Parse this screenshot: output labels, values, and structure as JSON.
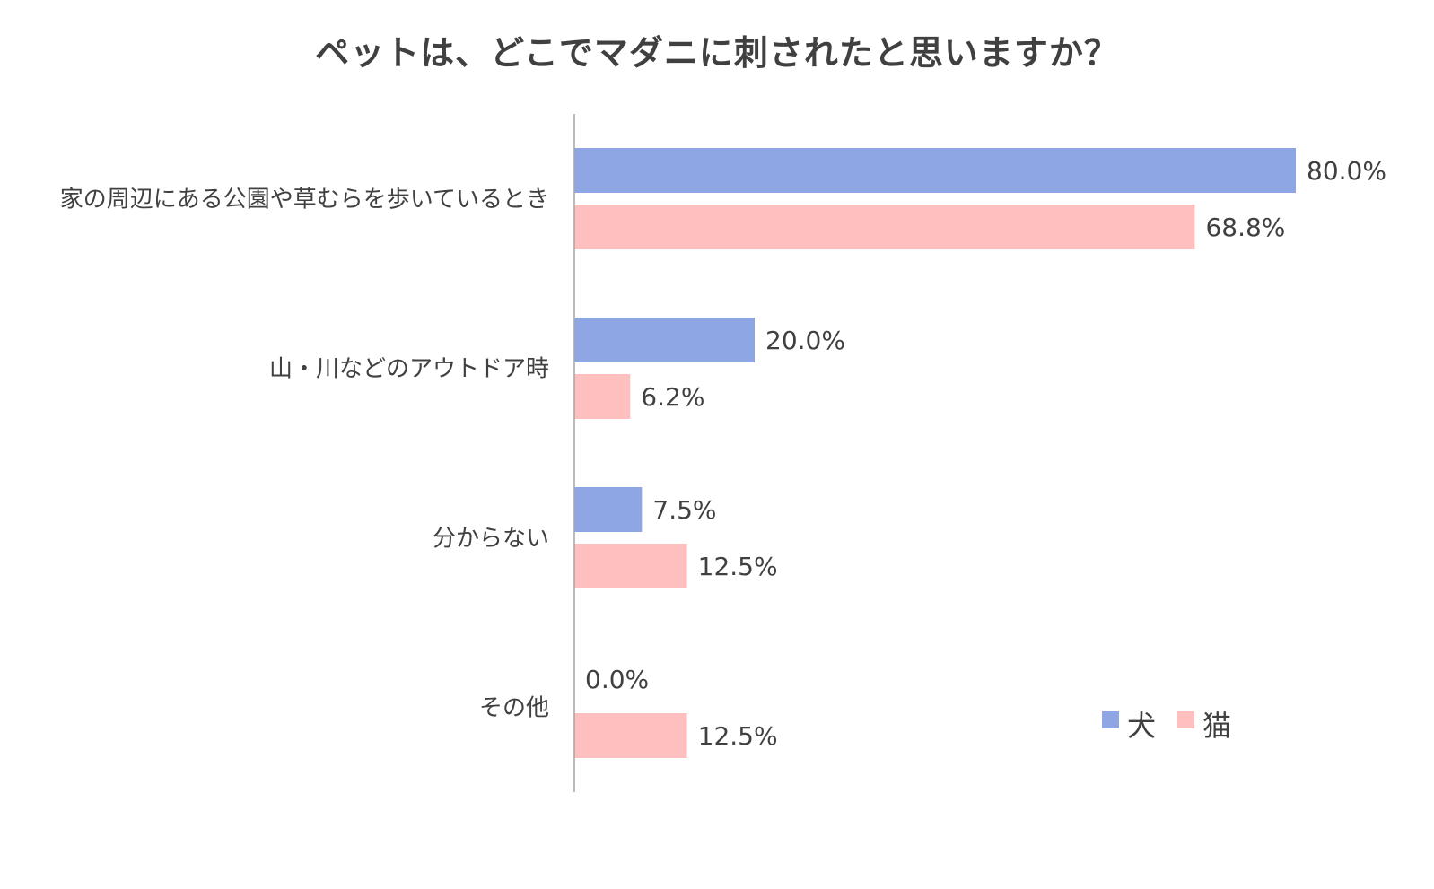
{
  "chart_data": {
    "type": "bar",
    "orientation": "horizontal",
    "title": "ペットは、どこでマダニに刺されたと思いますか？",
    "categories": [
      "家の周辺にある公園や草むらを歩いているとき",
      "山・川などのアウトドア時",
      "分からない",
      "その他"
    ],
    "series": [
      {
        "name": "犬",
        "color": "#8EA6E4",
        "values": [
          80.0,
          20.0,
          7.5,
          0.0
        ],
        "labels": [
          "80.0%",
          "20.0%",
          "7.5%",
          "0.0%"
        ]
      },
      {
        "name": "猫",
        "color": "#FFBFBF",
        "values": [
          68.8,
          6.2,
          12.5,
          12.5
        ],
        "labels": [
          "68.8%",
          "6.2%",
          "12.5%",
          "12.5%"
        ]
      }
    ],
    "xlim": [
      0,
      80
    ],
    "grid": false,
    "legend_position": "bottom-right",
    "axis_color": "#A6A6A6"
  }
}
